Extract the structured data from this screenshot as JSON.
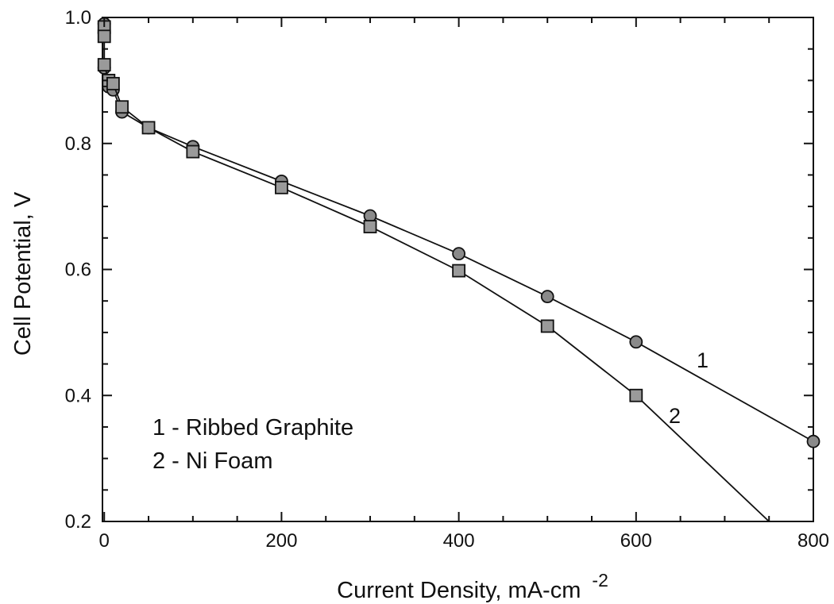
{
  "chart_data": {
    "type": "line",
    "xlabel": "Current Density, mA-cm",
    "xlabel_superscript": "-2",
    "ylabel": "Cell Potential, V",
    "xlim": [
      -2,
      800
    ],
    "ylim": [
      0.2,
      1.0
    ],
    "x_ticks": [
      0,
      200,
      400,
      600,
      800
    ],
    "x_tick_labels": [
      "0",
      "200",
      "400",
      "600",
      "800"
    ],
    "y_ticks": [
      0.2,
      0.4,
      0.6,
      0.8,
      1.0
    ],
    "y_tick_labels": [
      "0.2",
      "0.4",
      "0.6",
      "0.8",
      "1.0"
    ],
    "grid": false,
    "legend": {
      "placement": "lower-left",
      "entries": [
        "1 - Ribbed Graphite",
        "2 - Ni Foam"
      ]
    },
    "series": [
      {
        "label": "1",
        "marker": "circle",
        "x": [
          0,
          0,
          0,
          5,
          10,
          20,
          50,
          100,
          200,
          300,
          400,
          500,
          600,
          800
        ],
        "y": [
          0.99,
          0.975,
          0.92,
          0.89,
          0.885,
          0.85,
          0.825,
          0.795,
          0.74,
          0.685,
          0.625,
          0.557,
          0.485,
          0.327
        ]
      },
      {
        "label": "2",
        "marker": "square",
        "x": [
          0,
          0,
          0,
          5,
          10,
          20,
          50,
          100,
          200,
          300,
          400,
          500,
          600,
          750
        ],
        "y": [
          0.985,
          0.97,
          0.925,
          0.9,
          0.895,
          0.858,
          0.825,
          0.787,
          0.73,
          0.668,
          0.598,
          0.51,
          0.4,
          0.2
        ],
        "marker_count": 13
      }
    ]
  }
}
